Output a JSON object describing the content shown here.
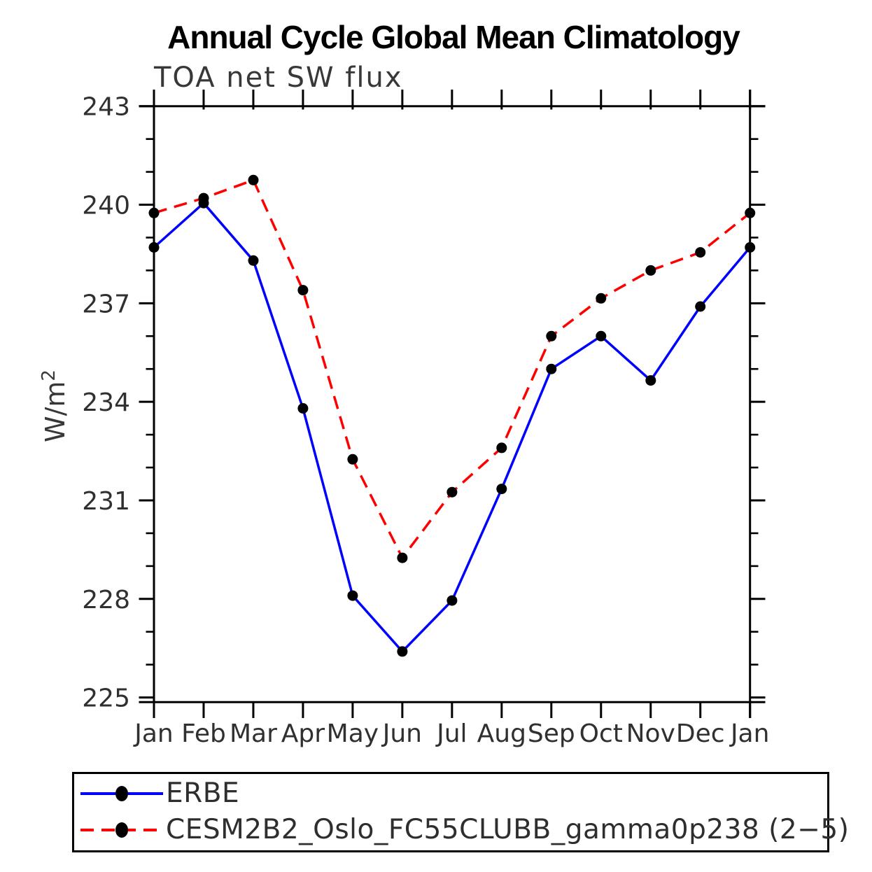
{
  "chart": {
    "title": "Annual Cycle Global Mean Climatology",
    "subtitle": "TOA net SW flux",
    "ylabel_base": "W/m",
    "ylabel_exp": "2"
  },
  "legend": {
    "items": [
      {
        "label": "ERBE",
        "color": "#0000ff",
        "dash": "solid"
      },
      {
        "label": "CESM2B2_Oslo_FC55CLUBB_gamma0p238 (2−5)",
        "color": "#ff0000",
        "dash": "dashed"
      }
    ]
  },
  "chart_data": {
    "type": "line",
    "title": "Annual Cycle Global Mean Climatology",
    "subtitle": "TOA net SW flux",
    "xlabel": "",
    "ylabel": "W/m²",
    "categories": [
      "Jan",
      "Feb",
      "Mar",
      "Apr",
      "May",
      "Jun",
      "Jul",
      "Aug",
      "Sep",
      "Oct",
      "Nov",
      "Dec",
      "Jan"
    ],
    "y_ticks": [
      225,
      228,
      231,
      234,
      237,
      240,
      243
    ],
    "ylim": [
      224.85,
      243.0
    ],
    "grid": false,
    "legend_position": "bottom",
    "marker": "filled-circle",
    "marker_color": "#000000",
    "series": [
      {
        "name": "ERBE",
        "color": "#0000ff",
        "style": "solid",
        "values": [
          238.7,
          240.05,
          238.3,
          233.8,
          228.1,
          226.4,
          227.95,
          231.35,
          235.0,
          236.0,
          234.65,
          236.9,
          238.7
        ]
      },
      {
        "name": "CESM2B2_Oslo_FC55CLUBB_gamma0p238 (2−5)",
        "color": "#ff0000",
        "style": "dashed",
        "values": [
          239.75,
          240.2,
          240.75,
          237.4,
          232.25,
          229.25,
          231.25,
          232.6,
          236.0,
          237.15,
          238.0,
          238.55,
          239.75
        ]
      }
    ]
  }
}
